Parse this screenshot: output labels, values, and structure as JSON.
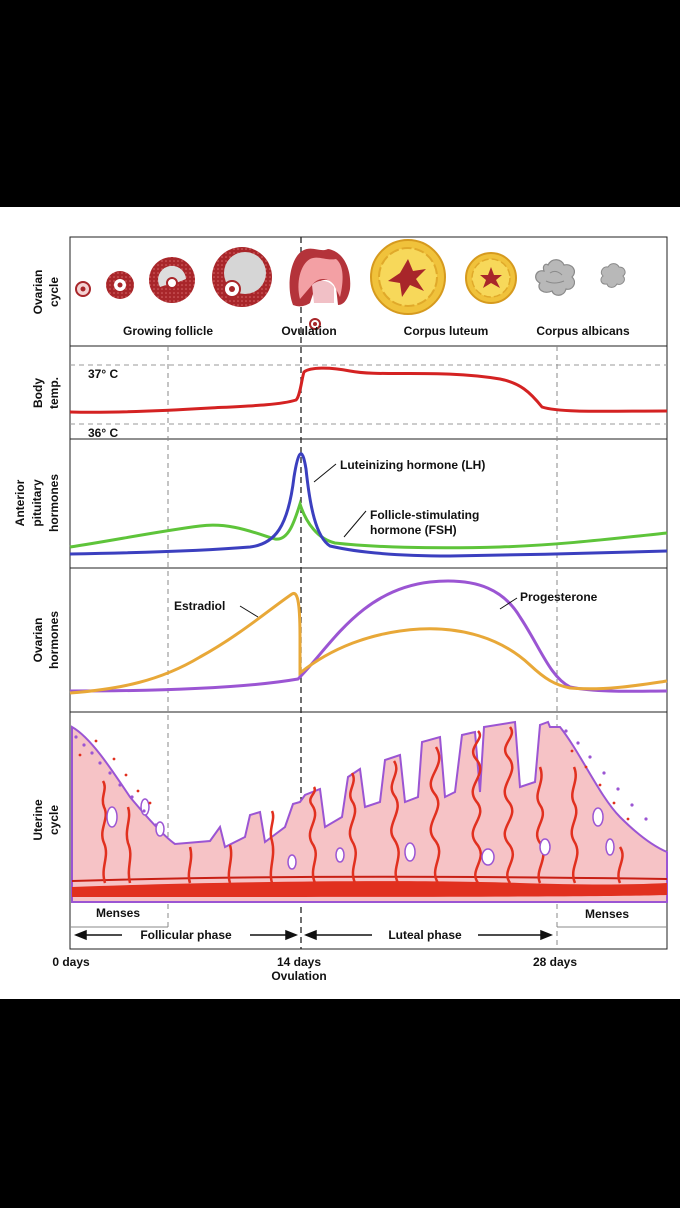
{
  "ovarian_cycle": {
    "row_label_1": "Ovarian",
    "row_label_2": "cycle",
    "stages": [
      "Growing follicle",
      "Ovulation",
      "Corpus luteum",
      "Corpus albicans"
    ]
  },
  "body_temp": {
    "row_label_1": "Body",
    "row_label_2": "temp.",
    "high_label": "37° C",
    "low_label": "36° C"
  },
  "pituitary": {
    "row_label_1": "Anterior",
    "row_label_2": "pituitary",
    "row_label_3": "hormones",
    "lh_label": "Luteinizing hormone (LH)",
    "fsh_label_1": "Follicle-stimulating",
    "fsh_label_2": "hormone (FSH)"
  },
  "ovarian_hormones": {
    "row_label_1": "Ovarian",
    "row_label_2": "hormones",
    "estradiol_label": "Estradiol",
    "progesterone_label": "Progesterone"
  },
  "uterine": {
    "row_label_1": "Uterine",
    "row_label_2": "cycle",
    "menses_left": "Menses",
    "menses_right": "Menses"
  },
  "phases": {
    "follicular": "Follicular phase",
    "luteal": "Luteal phase"
  },
  "timeline": {
    "day0": "0 days",
    "day14": "14 days",
    "ovulation": "Ovulation",
    "day28": "28 days"
  },
  "colors": {
    "temp": "#d42222",
    "lh": "#3b3fbf",
    "fsh": "#5ec43a",
    "estradiol": "#e8a838",
    "progesterone": "#9b55d3",
    "endometrium": "#f6c3c6",
    "vessel": "#e1301f",
    "follicle": "#a8262a"
  }
}
